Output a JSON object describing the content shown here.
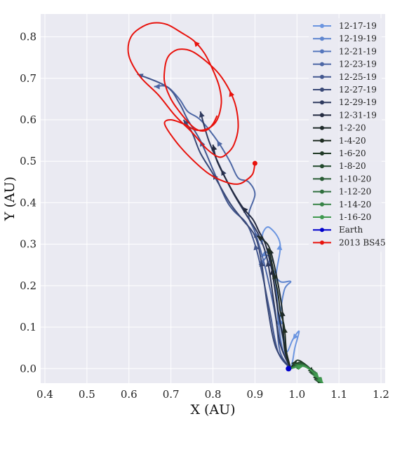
{
  "chart_data": {
    "type": "line",
    "title": "",
    "xlabel": "X (AU)",
    "ylabel": "Y (AU)",
    "xlim": [
      0.39,
      1.21
    ],
    "ylim": [
      -0.035,
      0.855
    ],
    "xticks": [
      "0.4",
      "0.5",
      "0.6",
      "0.7",
      "0.8",
      "0.9",
      "1.0",
      "1.1",
      "1.2"
    ],
    "yticks": [
      "0.0",
      "0.1",
      "0.2",
      "0.3",
      "0.4",
      "0.5",
      "0.6",
      "0.7",
      "0.8"
    ],
    "grid": true,
    "background": "#eaeaf2",
    "legend_position": "top-right",
    "series": [
      {
        "name": "12-17-19",
        "color": "#6b95e0",
        "points": [
          [
            0.985,
            0.0
          ],
          [
            0.99,
            0.02
          ],
          [
            0.995,
            0.05
          ],
          [
            1.005,
            0.09
          ],
          [
            0.99,
            0.07
          ],
          [
            0.975,
            0.04
          ],
          [
            0.965,
            0.08
          ],
          [
            0.955,
            0.14
          ],
          [
            0.95,
            0.22
          ],
          [
            0.96,
            0.3
          ],
          [
            0.935,
            0.34
          ],
          [
            0.92,
            0.33
          ],
          [
            0.915,
            0.3
          ]
        ],
        "marker": "marker on trailing endpoint"
      },
      {
        "name": "12-19-19",
        "color": "#5f86cf",
        "points": [
          [
            0.985,
            0.0
          ],
          [
            0.975,
            0.03
          ],
          [
            0.97,
            0.07
          ],
          [
            0.96,
            0.12
          ],
          [
            0.97,
            0.19
          ],
          [
            0.985,
            0.21
          ],
          [
            0.96,
            0.21
          ],
          [
            0.94,
            0.24
          ],
          [
            0.93,
            0.28
          ],
          [
            0.915,
            0.27
          ]
        ],
        "marker": "marker on trailing endpoint"
      },
      {
        "name": "12-21-19",
        "color": "#5677bd",
        "points": [
          [
            0.985,
            0.0
          ],
          [
            0.965,
            0.05
          ],
          [
            0.955,
            0.12
          ],
          [
            0.95,
            0.2
          ],
          [
            0.935,
            0.27
          ],
          [
            0.92,
            0.26
          ],
          [
            0.91,
            0.25
          ]
        ],
        "marker": "marker on trailing endpoint"
      },
      {
        "name": "12-23-19",
        "color": "#4d67a5",
        "points": [
          [
            0.985,
            0.0
          ],
          [
            0.96,
            0.04
          ],
          [
            0.95,
            0.12
          ],
          [
            0.93,
            0.22
          ],
          [
            0.915,
            0.28
          ],
          [
            0.9,
            0.33
          ],
          [
            0.885,
            0.37
          ],
          [
            0.9,
            0.42
          ],
          [
            0.885,
            0.45
          ],
          [
            0.86,
            0.46
          ],
          [
            0.84,
            0.5
          ],
          [
            0.81,
            0.55
          ],
          [
            0.77,
            0.6
          ],
          [
            0.74,
            0.62
          ],
          [
            0.72,
            0.65
          ],
          [
            0.69,
            0.68
          ],
          [
            0.66,
            0.68
          ]
        ],
        "marker": "marker on trailing endpoint"
      },
      {
        "name": "12-25-19",
        "color": "#43578f",
        "points": [
          [
            0.985,
            0.0
          ],
          [
            0.955,
            0.04
          ],
          [
            0.935,
            0.14
          ],
          [
            0.915,
            0.24
          ],
          [
            0.9,
            0.3
          ],
          [
            0.88,
            0.35
          ],
          [
            0.85,
            0.38
          ],
          [
            0.83,
            0.41
          ],
          [
            0.8,
            0.48
          ],
          [
            0.77,
            0.55
          ],
          [
            0.74,
            0.6
          ],
          [
            0.72,
            0.64
          ],
          [
            0.69,
            0.68
          ],
          [
            0.62,
            0.71
          ]
        ],
        "marker": "marker on trailing endpoint"
      },
      {
        "name": "12-27-19",
        "color": "#394876",
        "points": [
          [
            0.985,
            0.0
          ],
          [
            0.95,
            0.05
          ],
          [
            0.93,
            0.15
          ],
          [
            0.915,
            0.26
          ],
          [
            0.9,
            0.32
          ],
          [
            0.87,
            0.36
          ],
          [
            0.84,
            0.4
          ],
          [
            0.8,
            0.47
          ],
          [
            0.77,
            0.52
          ],
          [
            0.75,
            0.57
          ],
          [
            0.73,
            0.6
          ]
        ],
        "marker": "marker on trailing endpoint"
      },
      {
        "name": "12-29-19",
        "color": "#2f3a5f",
        "points": [
          [
            0.985,
            0.0
          ],
          [
            0.96,
            0.06
          ],
          [
            0.945,
            0.16
          ],
          [
            0.93,
            0.26
          ],
          [
            0.91,
            0.32
          ],
          [
            0.88,
            0.37
          ],
          [
            0.85,
            0.42
          ],
          [
            0.82,
            0.48
          ],
          [
            0.79,
            0.55
          ],
          [
            0.77,
            0.62
          ]
        ],
        "marker": "marker on trailing endpoint"
      },
      {
        "name": "12-31-19",
        "color": "#232a40",
        "points": [
          [
            0.985,
            0.0
          ],
          [
            0.97,
            0.06
          ],
          [
            0.955,
            0.14
          ],
          [
            0.94,
            0.24
          ],
          [
            0.925,
            0.3
          ],
          [
            0.91,
            0.33
          ],
          [
            0.895,
            0.36
          ],
          [
            0.87,
            0.39
          ],
          [
            0.84,
            0.44
          ],
          [
            0.81,
            0.5
          ],
          [
            0.8,
            0.54
          ]
        ],
        "marker": "marker on trailing endpoint"
      },
      {
        "name": "1-2-20",
        "color": "#1f2a2a",
        "points": [
          [
            0.985,
            0.0
          ],
          [
            0.97,
            0.05
          ],
          [
            0.965,
            0.14
          ],
          [
            0.95,
            0.23
          ],
          [
            0.935,
            0.29
          ],
          [
            0.92,
            0.31
          ],
          [
            0.905,
            0.32
          ]
        ],
        "marker": "marker on trailing endpoint"
      },
      {
        "name": "1-4-20",
        "color": "#1f2d23",
        "points": [
          [
            0.985,
            0.0
          ],
          [
            0.975,
            0.04
          ],
          [
            0.97,
            0.1
          ],
          [
            0.96,
            0.14
          ],
          [
            0.955,
            0.18
          ],
          [
            0.945,
            0.23
          ],
          [
            0.935,
            0.28
          ],
          [
            0.93,
            0.29
          ]
        ],
        "marker": "marker on trailing endpoint"
      },
      {
        "name": "1-6-20",
        "color": "#1e3824",
        "points": [
          [
            0.985,
            0.0
          ],
          [
            1.0,
            0.02
          ],
          [
            1.02,
            0.01
          ],
          [
            1.04,
            -0.01
          ],
          [
            1.05,
            -0.03
          ]
        ],
        "marker": "marker on trailing endpoint"
      },
      {
        "name": "1-8-20",
        "color": "#22492c",
        "points": [
          [
            0.985,
            0.0
          ],
          [
            1.005,
            0.015
          ],
          [
            1.025,
            0.005
          ],
          [
            1.042,
            -0.015
          ],
          [
            1.052,
            -0.035
          ]
        ],
        "marker": "marker on trailing endpoint"
      },
      {
        "name": "1-10-20",
        "color": "#295c35",
        "points": [
          [
            0.985,
            0.0
          ],
          [
            1.008,
            0.012
          ],
          [
            1.03,
            0.0
          ],
          [
            1.045,
            -0.018
          ],
          [
            1.055,
            -0.035
          ]
        ],
        "marker": "marker on trailing endpoint"
      },
      {
        "name": "1-12-20",
        "color": "#306f3f",
        "points": [
          [
            0.985,
            0.0
          ],
          [
            1.01,
            0.01
          ],
          [
            1.033,
            -0.003
          ],
          [
            1.048,
            -0.02
          ],
          [
            1.058,
            -0.035
          ]
        ],
        "marker": "marker on trailing endpoint"
      },
      {
        "name": "1-14-20",
        "color": "#378346",
        "points": [
          [
            0.985,
            0.0
          ],
          [
            1.012,
            0.008
          ],
          [
            1.036,
            -0.005
          ],
          [
            1.051,
            -0.022
          ],
          [
            1.06,
            -0.035
          ]
        ],
        "marker": "marker on trailing endpoint"
      },
      {
        "name": "1-16-20",
        "color": "#3f994f",
        "points": [
          [
            0.985,
            0.0
          ],
          [
            1.015,
            0.006
          ],
          [
            1.038,
            -0.008
          ],
          [
            1.053,
            -0.024
          ],
          [
            1.062,
            -0.035
          ]
        ],
        "marker": "marker on trailing endpoint"
      },
      {
        "name": "Earth",
        "color": "#0000cc",
        "points": [
          [
            0.98,
            0.0
          ]
        ],
        "marker": "filled dot"
      },
      {
        "name": "2013 BS45",
        "color": "#e8120c",
        "points": [
          [
            0.9,
            0.495
          ],
          [
            0.895,
            0.47
          ],
          [
            0.88,
            0.455
          ],
          [
            0.86,
            0.445
          ],
          [
            0.83,
            0.45
          ],
          [
            0.79,
            0.47
          ],
          [
            0.745,
            0.51
          ],
          [
            0.71,
            0.55
          ],
          [
            0.685,
            0.59
          ],
          [
            0.7,
            0.6
          ],
          [
            0.73,
            0.59
          ],
          [
            0.76,
            0.575
          ],
          [
            0.79,
            0.58
          ],
          [
            0.81,
            0.6
          ],
          [
            0.82,
            0.64
          ],
          [
            0.815,
            0.68
          ],
          [
            0.8,
            0.72
          ],
          [
            0.78,
            0.76
          ],
          [
            0.755,
            0.79
          ],
          [
            0.725,
            0.81
          ],
          [
            0.69,
            0.83
          ],
          [
            0.655,
            0.833
          ],
          [
            0.625,
            0.82
          ],
          [
            0.605,
            0.8
          ],
          [
            0.598,
            0.77
          ],
          [
            0.605,
            0.74
          ],
          [
            0.63,
            0.7
          ],
          [
            0.67,
            0.66
          ],
          [
            0.71,
            0.61
          ],
          [
            0.75,
            0.57
          ],
          [
            0.785,
            0.53
          ],
          [
            0.815,
            0.51
          ],
          [
            0.835,
            0.52
          ],
          [
            0.85,
            0.54
          ],
          [
            0.86,
            0.58
          ],
          [
            0.855,
            0.63
          ],
          [
            0.84,
            0.67
          ],
          [
            0.815,
            0.71
          ],
          [
            0.785,
            0.74
          ],
          [
            0.75,
            0.765
          ],
          [
            0.72,
            0.77
          ],
          [
            0.7,
            0.76
          ],
          [
            0.69,
            0.745
          ],
          [
            0.685,
            0.72
          ],
          [
            0.685,
            0.69
          ],
          [
            0.7,
            0.65
          ],
          [
            0.72,
            0.62
          ],
          [
            0.745,
            0.59
          ],
          [
            0.765,
            0.575
          ],
          [
            0.785,
            0.575
          ],
          [
            0.8,
            0.59
          ],
          [
            0.81,
            0.61
          ]
        ],
        "marker": "marker on trailing endpoint"
      }
    ]
  }
}
